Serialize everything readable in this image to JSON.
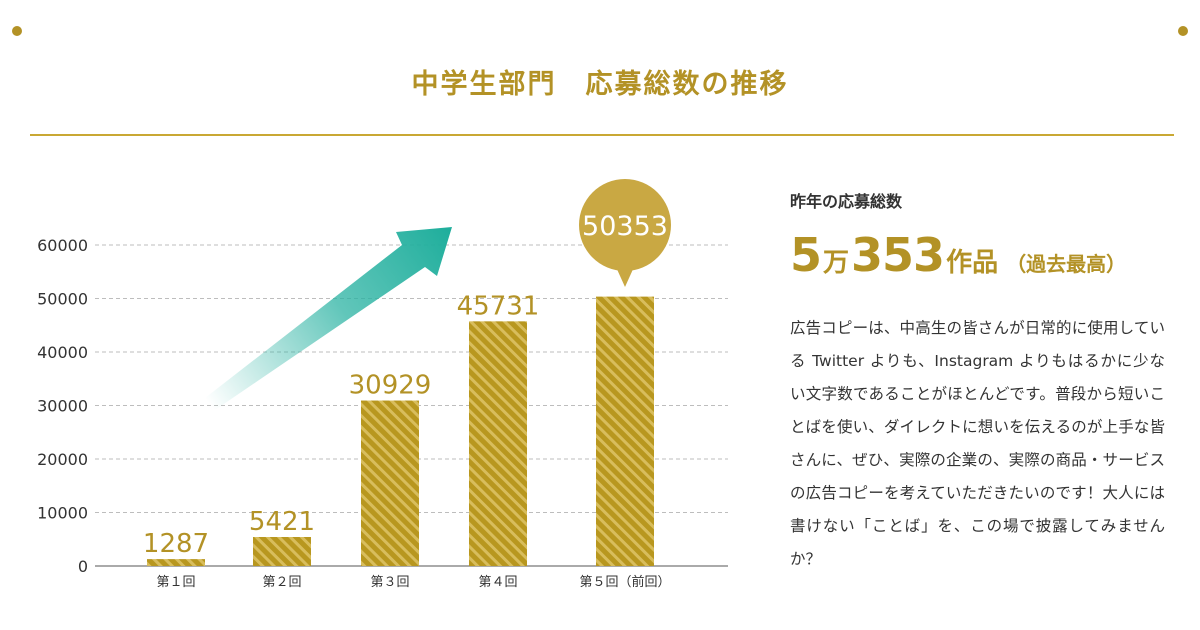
{
  "title": "中学生部門　応募総数の推移",
  "colors": {
    "gold": "#b39226",
    "arrow": "#2cb3a3",
    "grid": "#bdbdbd",
    "text": "#333333"
  },
  "chart_data": {
    "type": "bar",
    "categories": [
      "第１回",
      "第２回",
      "第３回",
      "第４回",
      "第５回（前回）"
    ],
    "values": [
      1287,
      5421,
      30929,
      45731,
      50353
    ],
    "data_labels": [
      "1287",
      "5421",
      "30929",
      "45731",
      "50353"
    ],
    "y_ticks": [
      "0",
      "10000",
      "20000",
      "30000",
      "40000",
      "50000",
      "60000"
    ],
    "ylim": [
      0,
      60000
    ],
    "grid": true,
    "highlight_index": 4,
    "xlabel": "",
    "ylabel": ""
  },
  "side": {
    "heading": "昨年の応募総数",
    "total_prefix": "5",
    "total_unit_man": "万",
    "total_rest": "353",
    "total_unit": "作品",
    "total_note": "（過去最高）",
    "body": "広告コピーは、中高生の皆さんが日常的に使用している Twitter よりも、Instagram よりもはるかに少ない文字数であることがほとんどです。普段から短いことばを使い、ダイレクトに想いを伝えるのが上手な皆さんに、ぜひ、実際の企業の、実際の商品・サービスの広告コピーを考えていただきたいのです！大人には書けない「ことば」を、この場で披露してみませんか？"
  }
}
